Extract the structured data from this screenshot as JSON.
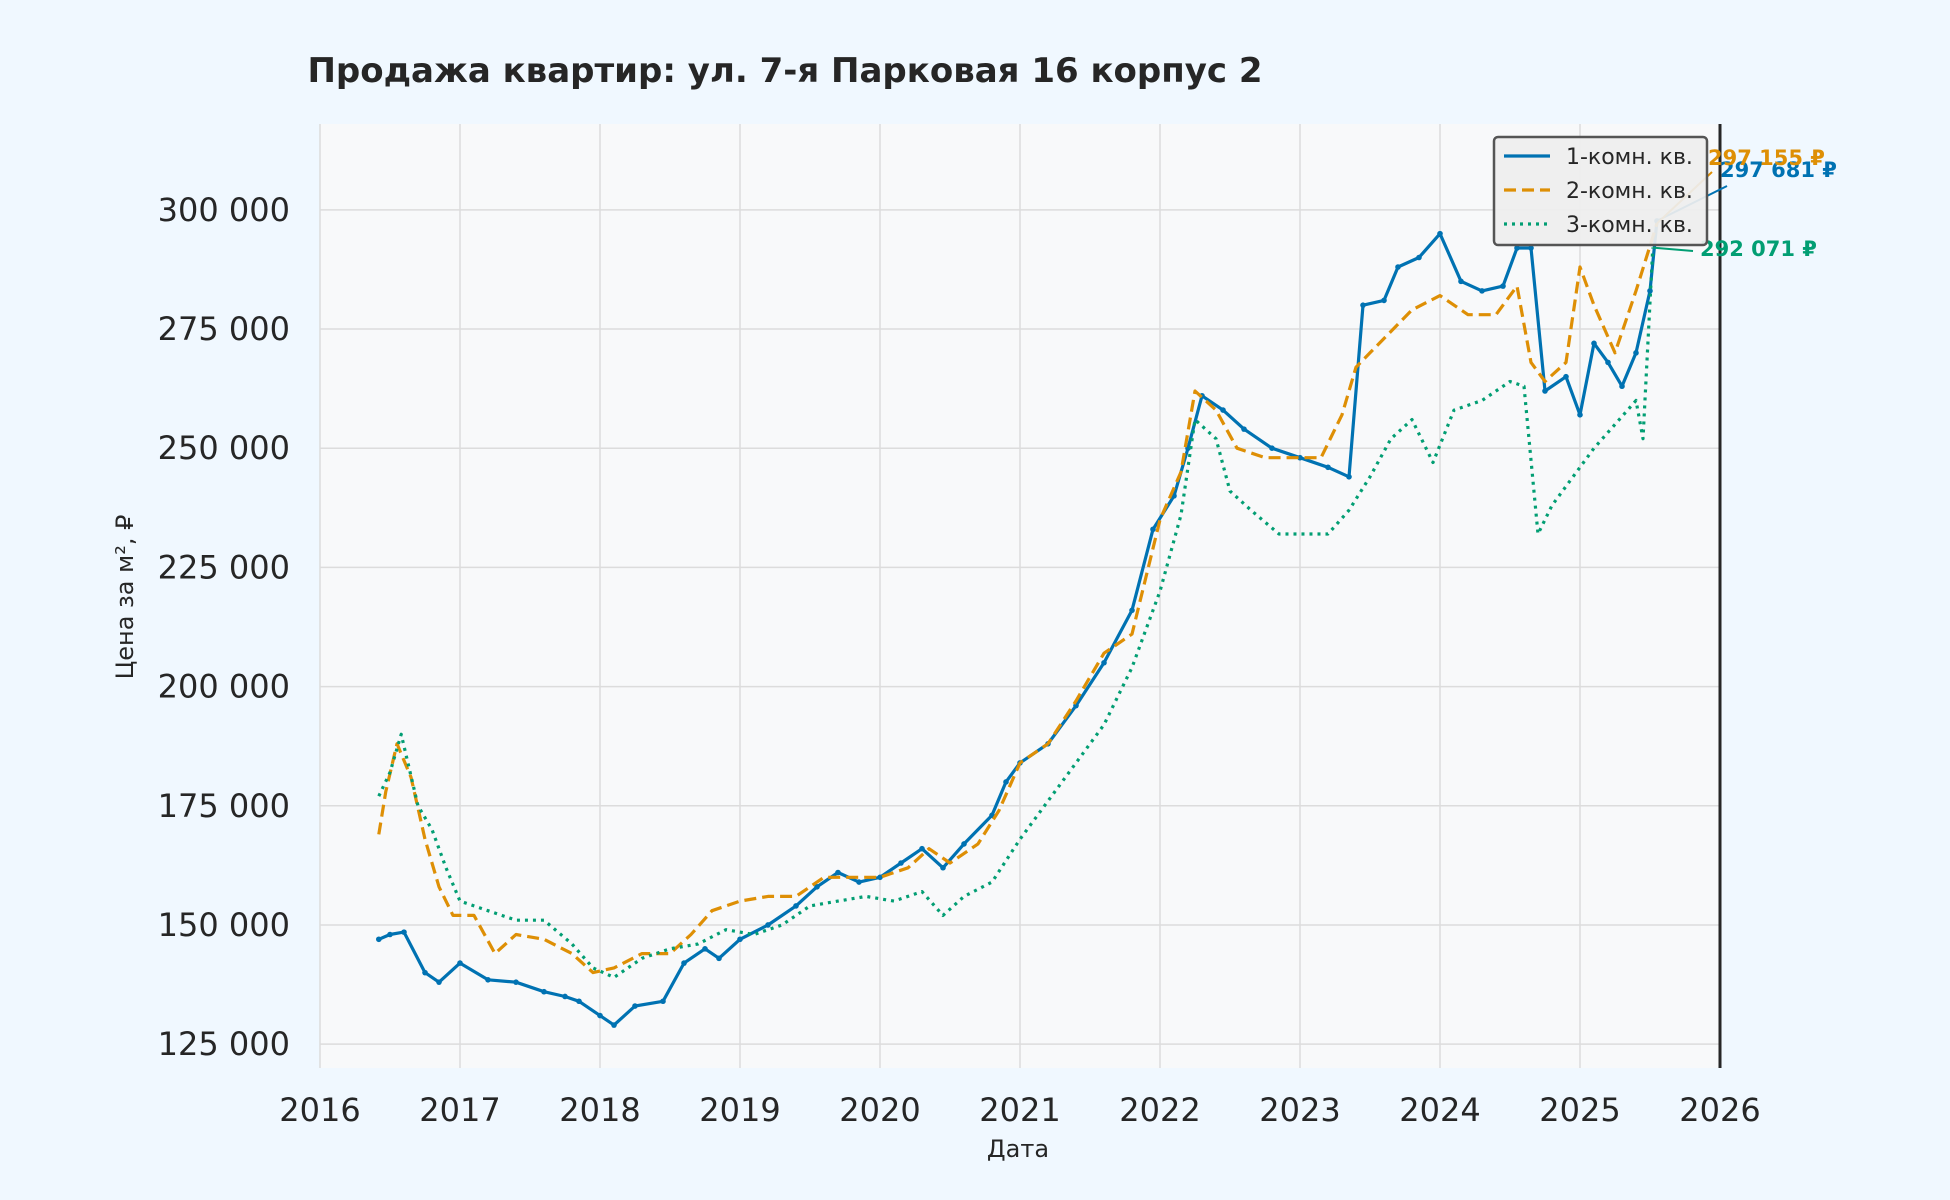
{
  "chart_data": {
    "type": "line",
    "title": "Продажа квартир: ул. 7-я Парковая 16 корпус 2",
    "xlabel": "Дата",
    "ylabel": "Цена за м², ₽",
    "xlim": [
      2016,
      2026
    ],
    "ylim": [
      120000,
      318000
    ],
    "x_ticks": [
      "2016",
      "2017",
      "2018",
      "2019",
      "2020",
      "2021",
      "2022",
      "2023",
      "2024",
      "2025",
      "2026"
    ],
    "y_ticks": [
      "125 000",
      "150 000",
      "175 000",
      "200 000",
      "225 000",
      "250 000",
      "275 000",
      "300 000"
    ],
    "y_tick_values": [
      125000,
      150000,
      175000,
      200000,
      225000,
      250000,
      275000,
      300000
    ],
    "grid": true,
    "legend_position": "top-right",
    "series": [
      {
        "name": "1-комн. кв.",
        "color": "#0072b2",
        "style": "solid",
        "end_label": "297 681 ₽",
        "x": [
          2016.42,
          2016.5,
          2016.6,
          2016.75,
          2016.85,
          2017.0,
          2017.2,
          2017.4,
          2017.6,
          2017.75,
          2017.85,
          2018.0,
          2018.1,
          2018.25,
          2018.45,
          2018.6,
          2018.75,
          2018.85,
          2019.0,
          2019.2,
          2019.4,
          2019.55,
          2019.7,
          2019.85,
          2020.0,
          2020.15,
          2020.3,
          2020.45,
          2020.6,
          2020.8,
          2020.9,
          2021.0,
          2021.2,
          2021.4,
          2021.6,
          2021.8,
          2021.95,
          2022.1,
          2022.2,
          2022.3,
          2022.45,
          2022.6,
          2022.8,
          2023.0,
          2023.2,
          2023.35,
          2023.45,
          2023.6,
          2023.7,
          2023.85,
          2024.0,
          2024.15,
          2024.3,
          2024.45,
          2024.55,
          2024.65,
          2024.75,
          2024.9,
          2025.0,
          2025.1,
          2025.2,
          2025.3,
          2025.4,
          2025.5,
          2025.55
        ],
        "y": [
          147000,
          148000,
          148500,
          140000,
          138000,
          142000,
          138500,
          138000,
          136000,
          135000,
          134000,
          131000,
          129000,
          133000,
          134000,
          142000,
          145000,
          143000,
          147000,
          150000,
          154000,
          158000,
          161000,
          159000,
          160000,
          163000,
          166000,
          162000,
          167000,
          173000,
          180000,
          184000,
          188000,
          196000,
          205000,
          216000,
          233000,
          240000,
          250000,
          261000,
          258000,
          254000,
          250000,
          248000,
          246000,
          244000,
          280000,
          281000,
          288000,
          290000,
          295000,
          285000,
          283000,
          284000,
          292000,
          292000,
          262000,
          265000,
          257000,
          272000,
          268000,
          263000,
          270000,
          283000,
          297681
        ]
      },
      {
        "name": "2-комн. кв.",
        "color": "#de8f05",
        "style": "dashed",
        "end_label": "297 155 ₽",
        "x": [
          2016.42,
          2016.47,
          2016.55,
          2016.65,
          2016.75,
          2016.85,
          2016.95,
          2017.1,
          2017.25,
          2017.4,
          2017.6,
          2017.8,
          2017.95,
          2018.1,
          2018.3,
          2018.5,
          2018.65,
          2018.8,
          2019.0,
          2019.2,
          2019.4,
          2019.6,
          2019.8,
          2020.0,
          2020.2,
          2020.35,
          2020.5,
          2020.7,
          2020.85,
          2021.0,
          2021.2,
          2021.4,
          2021.6,
          2021.8,
          2022.0,
          2022.15,
          2022.25,
          2022.4,
          2022.55,
          2022.75,
          2022.95,
          2023.15,
          2023.3,
          2023.4,
          2023.5,
          2023.6,
          2023.8,
          2024.0,
          2024.2,
          2024.4,
          2024.55,
          2024.65,
          2024.75,
          2024.9,
          2025.0,
          2025.1,
          2025.25,
          2025.4,
          2025.55
        ],
        "y": [
          169000,
          178000,
          188000,
          181000,
          168000,
          158000,
          152000,
          152000,
          144000,
          148000,
          147000,
          144000,
          140000,
          141000,
          144000,
          144000,
          148000,
          153000,
          155000,
          156000,
          156000,
          160000,
          160000,
          160000,
          162000,
          166000,
          163000,
          167000,
          174000,
          184000,
          188000,
          197000,
          207000,
          211000,
          235000,
          245000,
          262000,
          258000,
          250000,
          248000,
          248000,
          248000,
          257000,
          267000,
          270000,
          273000,
          279000,
          282000,
          278000,
          278000,
          284000,
          268000,
          264000,
          268000,
          288000,
          280000,
          270000,
          283000,
          297155
        ]
      },
      {
        "name": "3-комн. кв.",
        "color": "#029e73",
        "style": "dotted",
        "end_label": "292 071 ₽",
        "x": [
          2016.42,
          2016.5,
          2016.58,
          2016.7,
          2016.8,
          2016.9,
          2017.0,
          2017.2,
          2017.4,
          2017.6,
          2017.8,
          2017.95,
          2018.1,
          2018.3,
          2018.5,
          2018.7,
          2018.9,
          2019.1,
          2019.3,
          2019.5,
          2019.7,
          2019.9,
          2020.1,
          2020.3,
          2020.45,
          2020.6,
          2020.8,
          2021.0,
          2021.2,
          2021.4,
          2021.6,
          2021.8,
          2022.0,
          2022.15,
          2022.25,
          2022.4,
          2022.5,
          2022.65,
          2022.85,
          2023.0,
          2023.2,
          2023.35,
          2023.5,
          2023.65,
          2023.8,
          2023.95,
          2024.1,
          2024.3,
          2024.5,
          2024.6,
          2024.7,
          2024.8,
          2024.95,
          2025.1,
          2025.25,
          2025.4,
          2025.45,
          2025.52
        ],
        "y": [
          177000,
          182000,
          190000,
          175000,
          170000,
          162000,
          155000,
          153000,
          151000,
          151000,
          146000,
          141000,
          139000,
          143000,
          145000,
          146000,
          149000,
          148000,
          150000,
          154000,
          155000,
          156000,
          155000,
          157000,
          152000,
          156000,
          159000,
          168000,
          176000,
          184000,
          192000,
          204000,
          220000,
          236000,
          256000,
          252000,
          241000,
          237000,
          232000,
          232000,
          232000,
          237000,
          244000,
          252000,
          256000,
          247000,
          258000,
          260000,
          264000,
          263000,
          232000,
          238000,
          244000,
          250000,
          255000,
          260000,
          252000,
          292071
        ]
      }
    ]
  }
}
